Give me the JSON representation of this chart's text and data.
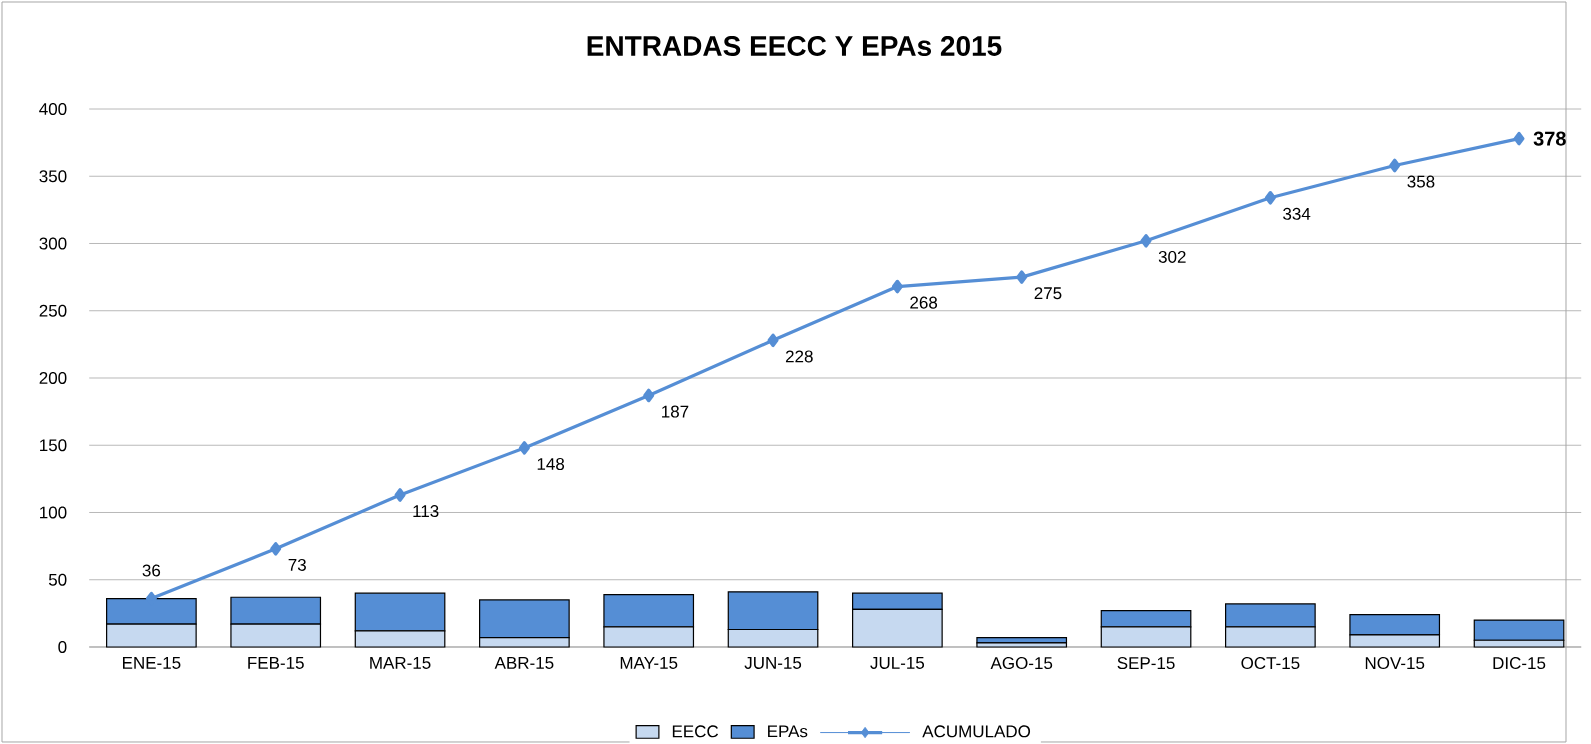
{
  "chart_data": {
    "type": "bar",
    "title": "ENTRADAS EECC Y EPAs 2015",
    "stacked": true,
    "categories": [
      "ENE-15",
      "FEB-15",
      "MAR-15",
      "ABR-15",
      "MAY-15",
      "JUN-15",
      "JUL-15",
      "AGO-15",
      "SEP-15",
      "OCT-15",
      "NOV-15",
      "DIC-15"
    ],
    "series": [
      {
        "name": "EECC",
        "color": "#c6d9f0",
        "values": [
          17,
          17,
          12,
          7,
          15,
          13,
          28,
          3,
          15,
          15,
          9,
          5
        ]
      },
      {
        "name": "EPAs",
        "color": "#558ed5",
        "values": [
          19,
          20,
          28,
          28,
          24,
          28,
          12,
          4,
          12,
          17,
          15,
          15
        ]
      },
      {
        "name": "ACUMULADO",
        "type": "line",
        "color": "#558ed5",
        "marker": "diamond",
        "line_style": "solid",
        "values": [
          36,
          73,
          113,
          148,
          187,
          228,
          268,
          275,
          302,
          334,
          358,
          378
        ],
        "value_labels": [
          "36",
          "73",
          "113",
          "148",
          "187",
          "228",
          "268",
          "275",
          "302",
          "334",
          "358",
          "**378**"
        ]
      }
    ],
    "ylim": [
      0,
      400
    ],
    "yticks": [
      0,
      50,
      100,
      150,
      200,
      250,
      300,
      350,
      400
    ],
    "grid": "y",
    "legend": "bottom"
  }
}
